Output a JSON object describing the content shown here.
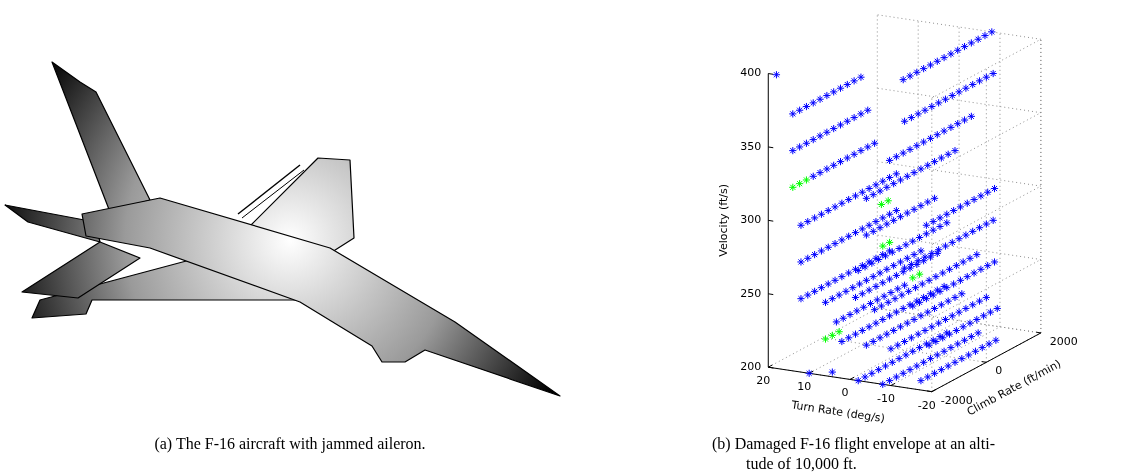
{
  "captions": {
    "a": "(a) The F-16 aircraft with jammed aileron.",
    "b": [
      "(b) Damaged F-16 flight envelope at an alti-",
      "tude of 10,000 ft."
    ]
  },
  "chart_data": {
    "type": "scatter3d",
    "x_label": "Turn Rate (deg/s)",
    "y_label": "Climb Rate (ft/min)",
    "z_label": "Velocity (ft/s)",
    "xlim": [
      -20,
      20
    ],
    "xticks": [
      -20,
      -10,
      0,
      10,
      20
    ],
    "ylim": [
      -2000,
      2000
    ],
    "yticks": [
      -2000,
      0,
      2000
    ],
    "zlim": [
      200,
      400
    ],
    "zticks": [
      200,
      250,
      300,
      350,
      400
    ],
    "grid": true,
    "series": [
      {
        "color": "#0000ff",
        "marker": "asterisk",
        "rows": [
          {
            "x": 18,
            "z": 400,
            "y": [
              -2000
            ]
          },
          {
            "x": -8,
            "z": 400,
            "y": [
              -1250,
              -1000,
              -750,
              -500,
              -250,
              0,
              250,
              500,
              750,
              1000,
              1250,
              1500,
              1750,
              2000
            ]
          },
          {
            "x": 14,
            "z": 375,
            "y": [
              -2000,
              -1750,
              -1500,
              -1250,
              -1000,
              -750,
              -500,
              -250,
              0,
              250,
              500
            ]
          },
          {
            "x": -10,
            "z": 375,
            "y": [
              -1500,
              -1250,
              -1000,
              -750,
              -500,
              -250,
              0,
              250,
              500,
              750,
              1000,
              1250,
              1500,
              1750
            ]
          },
          {
            "x": 14,
            "z": 350,
            "y": [
              -2000,
              -1750,
              -1500,
              -1250,
              -1000,
              -750,
              -500,
              -250,
              0,
              250,
              500,
              750
            ]
          },
          {
            "x": -8,
            "z": 350,
            "y": [
              -1750,
              -1500,
              -1250,
              -1000,
              -750,
              -500,
              -250,
              0,
              250,
              500,
              750,
              1000,
              1250
            ]
          },
          {
            "x": 14,
            "z": 325,
            "y": [
              -1250,
              -1000,
              -750,
              -500,
              -250,
              0,
              250,
              500,
              750,
              1000
            ]
          },
          {
            "x": -4,
            "z": 325,
            "y": [
              -2000,
              -1750,
              -1500,
              -1250,
              -1000,
              -750,
              -500,
              -250,
              0,
              250,
              500,
              750,
              1000,
              1250
            ]
          },
          {
            "x": 12,
            "z": 300,
            "y": [
              -2000,
              -1750,
              -1500,
              -1250,
              -1000,
              -750,
              -500,
              -250,
              0,
              250,
              500,
              750,
              1000,
              1250,
              1500
            ]
          },
          {
            "x": -4,
            "z": 300,
            "y": [
              -2000,
              -1750,
              -1500,
              -1250,
              -1000,
              -750,
              -500,
              -250,
              0,
              250,
              500
            ]
          },
          {
            "x": -12,
            "z": 300,
            "y": [
              -1000,
              -750,
              -500,
              -250,
              0,
              250,
              500,
              750,
              1000,
              1250,
              1500
            ]
          },
          {
            "x": 12,
            "z": 275,
            "y": [
              -2000,
              -1750,
              -1500,
              -1250,
              -1000,
              -750,
              -500,
              -250,
              0,
              250,
              500,
              750,
              1000,
              1250,
              1500
            ]
          },
          {
            "x": -2,
            "z": 275,
            "y": [
              -2000,
              -1750,
              -1500,
              -1250,
              -1000,
              -750,
              -500,
              -250,
              0,
              250,
              500,
              750,
              1000,
              1250
            ]
          },
          {
            "x": -10,
            "z": 275,
            "y": [
              -1500,
              -1250,
              -1000,
              -750,
              -500,
              -250,
              0,
              250,
              500,
              750,
              1000,
              1250,
              1500,
              1750
            ]
          },
          {
            "x": 12,
            "z": 250,
            "y": [
              -2000,
              -1750,
              -1500,
              -1250,
              -1000,
              -750,
              -500,
              -250,
              0,
              250,
              500,
              750,
              1000,
              1250
            ]
          },
          {
            "x": 6,
            "z": 250,
            "y": [
              -2000,
              -1750,
              -1500,
              -1250,
              -1000,
              -750,
              -500,
              -250,
              0,
              250,
              500,
              750,
              1000,
              1250,
              1500
            ]
          },
          {
            "x": 2,
            "z": 250,
            "y": [
              -1500,
              -1250,
              -1000,
              -750,
              -500,
              -250,
              0,
              250,
              500,
              750,
              1000,
              1250,
              1500
            ]
          },
          {
            "x": -6,
            "z": 250,
            "y": [
              -2000,
              -1750,
              -1500,
              -1250,
              -1000,
              -750,
              -500,
              -250,
              0,
              250,
              500,
              750,
              1000,
              1250,
              1500,
              1750
            ]
          },
          {
            "x": -12,
            "z": 250,
            "y": [
              -1500,
              -1250,
              -1000,
              -750,
              -500,
              -250,
              0,
              250,
              500,
              750,
              1000,
              1250,
              1500
            ]
          },
          {
            "x": 10,
            "z": 225,
            "y": [
              -1000,
              -750,
              -500,
              -250,
              0,
              250,
              500,
              750,
              1000,
              1250,
              1500
            ]
          },
          {
            "x": 2,
            "z": 225,
            "y": [
              -2000,
              -1750,
              -1500,
              -1250,
              -1000,
              -750,
              -500,
              -250,
              0,
              250,
              500,
              750,
              1000,
              1250,
              1500,
              1750
            ]
          },
          {
            "x": -4,
            "z": 225,
            "y": [
              -2000,
              -1750,
              -1500,
              -1250,
              -1000,
              -750,
              -500,
              -250,
              0,
              250,
              500,
              750,
              1000,
              1250,
              1500
            ]
          },
          {
            "x": -10,
            "z": 225,
            "y": [
              -2000,
              -1750,
              -1500,
              -1250,
              -1000,
              -750,
              -500,
              -250,
              0,
              250,
              500,
              750,
              1000,
              1250,
              1500
            ]
          },
          {
            "x": -16,
            "z": 225,
            "y": [
              -1500,
              -1250,
              -1000,
              -750,
              -500,
              -250,
              0,
              250,
              500,
              750,
              1000
            ]
          },
          {
            "x": 10,
            "z": 200,
            "y": [
              -2000
            ]
          },
          {
            "x": 6,
            "z": 200,
            "y": [
              -1750
            ]
          },
          {
            "x": -2,
            "z": 200,
            "y": [
              -2000,
              -1750,
              -1500,
              -1250,
              -1000,
              -750,
              -500,
              -250,
              0,
              250,
              500,
              750,
              1000,
              1250
            ]
          },
          {
            "x": -8,
            "z": 200,
            "y": [
              -2000,
              -1750,
              -1500,
              -1250,
              -1000,
              -750,
              -500,
              -250,
              0,
              250,
              500,
              750,
              1000,
              1250,
              1500
            ]
          },
          {
            "x": -14,
            "z": 200,
            "y": [
              -1500,
              -1250,
              -1000,
              -750,
              -500,
              -250,
              0,
              250,
              500,
              750,
              1000,
              1250
            ]
          }
        ]
      },
      {
        "color": "#00ff00",
        "marker": "asterisk",
        "rows": [
          {
            "x": 14,
            "z": 325,
            "y": [
              -2000,
              -1750,
              -1500
            ]
          },
          {
            "x": 4,
            "z": 300,
            "y": [
              -250,
              0
            ]
          },
          {
            "x": 2,
            "z": 275,
            "y": [
              -500,
              -250
            ]
          },
          {
            "x": -2,
            "z": 250,
            "y": [
              0,
              250
            ]
          },
          {
            "x": 6,
            "z": 225,
            "y": [
              -2000,
              -1750,
              -1500
            ]
          }
        ]
      }
    ]
  }
}
